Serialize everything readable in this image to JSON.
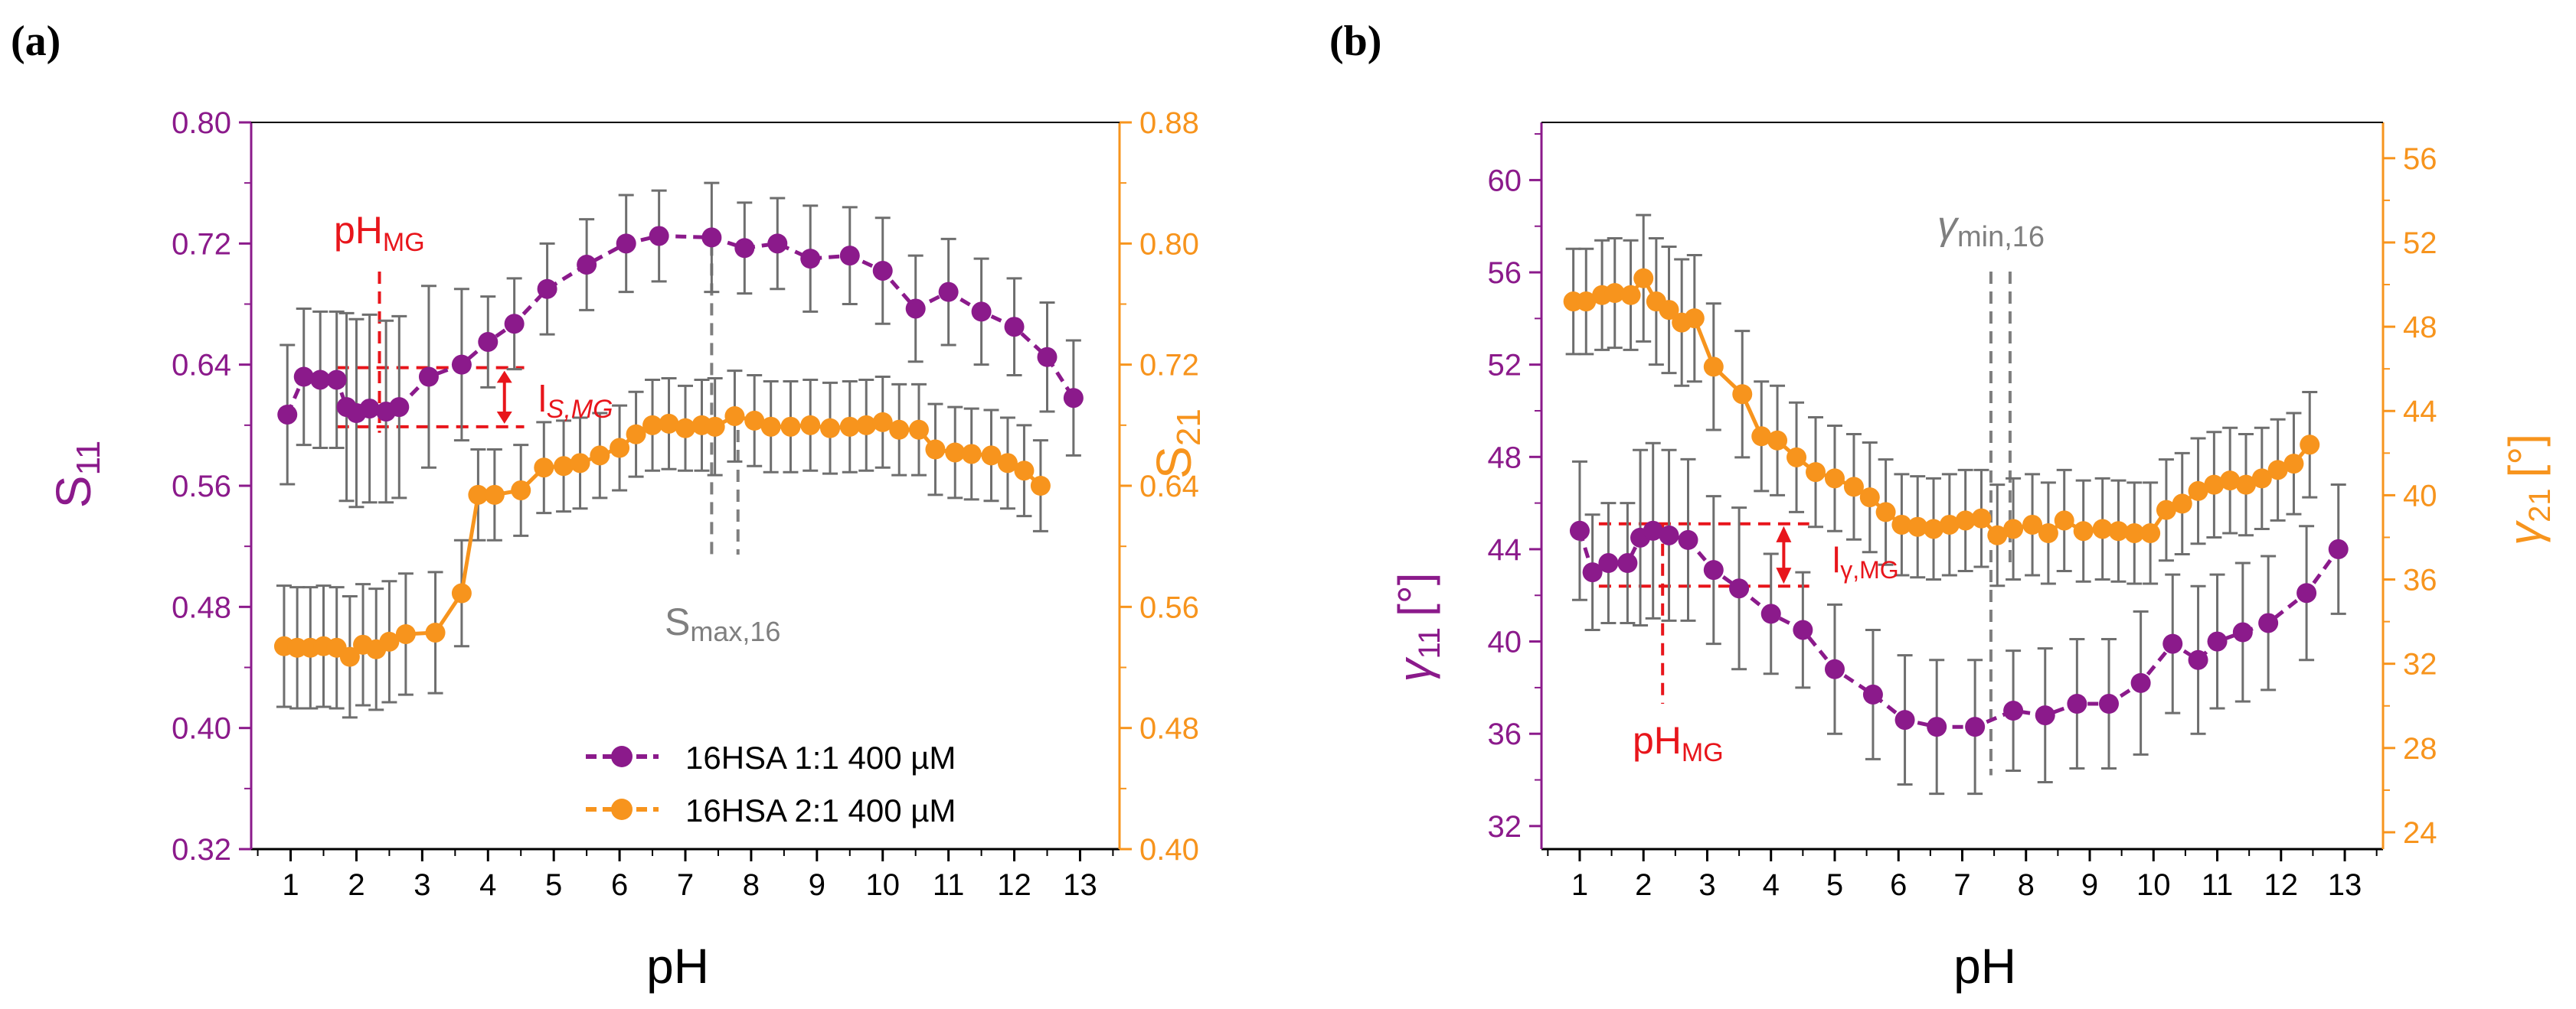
{
  "colors": {
    "purple": "#8B1A8B",
    "orange": "#F7941D",
    "red": "#E8151B",
    "gray": "#7F7F7F",
    "error": "#6E6E6E",
    "axis": "#000000"
  },
  "chart_data": [
    {
      "panel_label": "(a)",
      "type": "line",
      "xlabel": "pH",
      "xlim": [
        0.4,
        13.6
      ],
      "xticks": [
        "1",
        "2",
        "3",
        "4",
        "5",
        "6",
        "7",
        "8",
        "9",
        "10",
        "11",
        "12",
        "13"
      ],
      "y_left": {
        "label_main": "S",
        "label_sub": "11",
        "lim": [
          0.32,
          0.8
        ],
        "ticks": [
          "0.32",
          "0.40",
          "0.48",
          "0.56",
          "0.64",
          "0.72",
          "0.80"
        ]
      },
      "y_right": {
        "label_main": "S",
        "label_sub": "21",
        "lim": [
          0.4,
          0.88
        ],
        "ticks": [
          "0.40",
          "0.48",
          "0.56",
          "0.64",
          "0.72",
          "0.80",
          "0.88"
        ]
      },
      "series": [
        {
          "name": "16HSA 1:1 400 µM",
          "axis": "left",
          "color": "purple",
          "x": [
            0.95,
            1.2,
            1.45,
            1.7,
            1.85,
            2.0,
            2.2,
            2.45,
            2.65,
            3.1,
            3.6,
            4.0,
            4.4,
            4.9,
            5.5,
            6.1,
            6.6,
            7.4,
            7.9,
            8.4,
            8.9,
            9.5,
            10.0,
            10.5,
            11.0,
            11.5,
            12.0,
            12.5,
            12.9
          ],
          "y": [
            0.607,
            0.632,
            0.63,
            0.63,
            0.612,
            0.608,
            0.611,
            0.609,
            0.612,
            0.632,
            0.64,
            0.655,
            0.667,
            0.69,
            0.706,
            0.72,
            0.725,
            0.724,
            0.717,
            0.72,
            0.71,
            0.712,
            0.702,
            0.677,
            0.688,
            0.675,
            0.665,
            0.645,
            0.618
          ],
          "err": [
            0.046,
            0.045,
            0.045,
            0.045,
            0.062,
            0.062,
            0.062,
            0.06,
            0.06,
            0.06,
            0.05,
            0.03,
            0.03,
            0.03,
            0.03,
            0.032,
            0.03,
            0.036,
            0.03,
            0.03,
            0.035,
            0.032,
            0.035,
            0.035,
            0.035,
            0.035,
            0.032,
            0.036,
            0.038
          ]
        },
        {
          "name": "16HSA 2:1 400 µM",
          "axis": "right",
          "color": "orange",
          "x": [
            0.9,
            1.1,
            1.3,
            1.5,
            1.7,
            1.9,
            2.1,
            2.3,
            2.5,
            2.75,
            3.2,
            3.6,
            3.85,
            4.1,
            4.5,
            4.85,
            5.15,
            5.4,
            5.7,
            6.0,
            6.25,
            6.5,
            6.75,
            7.0,
            7.25,
            7.45,
            7.75,
            8.05,
            8.3,
            8.6,
            8.9,
            9.2,
            9.5,
            9.75,
            10.0,
            10.25,
            10.55,
            10.8,
            11.1,
            11.35,
            11.65,
            11.9,
            12.15,
            12.4
          ],
          "y": [
            0.534,
            0.533,
            0.533,
            0.534,
            0.533,
            0.527,
            0.535,
            0.532,
            0.537,
            0.542,
            0.543,
            0.569,
            0.634,
            0.634,
            0.637,
            0.652,
            0.653,
            0.655,
            0.66,
            0.665,
            0.674,
            0.68,
            0.681,
            0.678,
            0.68,
            0.679,
            0.686,
            0.683,
            0.679,
            0.679,
            0.68,
            0.678,
            0.679,
            0.68,
            0.682,
            0.677,
            0.677,
            0.664,
            0.662,
            0.661,
            0.66,
            0.655,
            0.65,
            0.64
          ],
          "err": [
            0.04,
            0.04,
            0.04,
            0.04,
            0.04,
            0.04,
            0.04,
            0.04,
            0.04,
            0.04,
            0.04,
            0.035,
            0.03,
            0.03,
            0.03,
            0.03,
            0.03,
            0.03,
            0.028,
            0.028,
            0.028,
            0.03,
            0.03,
            0.028,
            0.03,
            0.032,
            0.03,
            0.03,
            0.03,
            0.03,
            0.03,
            0.03,
            0.03,
            0.03,
            0.03,
            0.03,
            0.03,
            0.03,
            0.03,
            0.03,
            0.03,
            0.03,
            0.03,
            0.03
          ]
        }
      ],
      "annotations": {
        "ph_mg_main": "pH",
        "ph_mg_sub": "MG",
        "width_main": "l",
        "width_sub": "S,MG",
        "extreme_main": "S",
        "extreme_sub": "max,16"
      }
    },
    {
      "panel_label": "(b)",
      "type": "line",
      "xlabel": "pH",
      "xlim": [
        0.4,
        13.6
      ],
      "xticks": [
        "1",
        "2",
        "3",
        "4",
        "5",
        "6",
        "7",
        "8",
        "9",
        "10",
        "11",
        "12",
        "13"
      ],
      "y_left": {
        "label_main": "γ",
        "label_sub": "11",
        "label_unit": "[°]",
        "lim": [
          31,
          62.5
        ],
        "ticks": [
          "32",
          "36",
          "40",
          "44",
          "48",
          "52",
          "56",
          "60"
        ]
      },
      "y_right": {
        "label_main": "γ",
        "label_sub": "21",
        "label_unit": "[°]",
        "lim": [
          23.2,
          57.7
        ],
        "ticks": [
          "24",
          "28",
          "32",
          "36",
          "40",
          "44",
          "48",
          "52",
          "56"
        ]
      },
      "series": [
        {
          "name": "γ11",
          "axis": "left",
          "color": "purple",
          "x": [
            1.0,
            1.2,
            1.45,
            1.75,
            1.95,
            2.15,
            2.4,
            2.7,
            3.1,
            3.5,
            4.0,
            4.5,
            5.0,
            5.6,
            6.1,
            6.6,
            7.2,
            7.8,
            8.3,
            8.8,
            9.3,
            9.8,
            10.3,
            10.7,
            11.0,
            11.4,
            11.8,
            12.4,
            12.9
          ],
          "y": [
            44.8,
            43.0,
            43.4,
            43.4,
            44.5,
            44.8,
            44.6,
            44.4,
            43.1,
            42.3,
            41.2,
            40.5,
            38.8,
            37.7,
            36.6,
            36.3,
            36.3,
            37.0,
            36.8,
            37.3,
            37.3,
            38.2,
            39.9,
            39.2,
            40.0,
            40.4,
            40.8,
            42.1,
            44.0
          ],
          "err": [
            3.0,
            2.5,
            2.6,
            2.6,
            3.8,
            3.8,
            3.7,
            3.5,
            3.2,
            3.5,
            2.6,
            2.5,
            2.8,
            2.8,
            2.8,
            2.9,
            2.9,
            2.6,
            2.9,
            2.8,
            2.8,
            3.1,
            3.0,
            3.2,
            2.9,
            3.0,
            2.9,
            2.9,
            2.8
          ]
        },
        {
          "name": "γ21",
          "axis": "right",
          "color": "orange",
          "x": [
            0.9,
            1.1,
            1.35,
            1.55,
            1.8,
            2.0,
            2.2,
            2.4,
            2.6,
            2.8,
            3.1,
            3.55,
            3.85,
            4.1,
            4.4,
            4.7,
            5.0,
            5.3,
            5.55,
            5.8,
            6.05,
            6.3,
            6.55,
            6.8,
            7.05,
            7.3,
            7.55,
            7.8,
            8.1,
            8.35,
            8.6,
            8.9,
            9.2,
            9.45,
            9.7,
            9.95,
            10.2,
            10.45,
            10.7,
            10.95,
            11.2,
            11.45,
            11.7,
            11.95,
            12.2,
            12.45
          ],
          "y": [
            49.2,
            49.2,
            49.5,
            49.6,
            49.5,
            50.3,
            49.2,
            48.8,
            48.2,
            48.4,
            46.1,
            44.8,
            42.8,
            42.6,
            41.8,
            41.1,
            40.8,
            40.4,
            39.9,
            39.2,
            38.6,
            38.5,
            38.4,
            38.6,
            38.8,
            38.9,
            38.1,
            38.4,
            38.6,
            38.2,
            38.8,
            38.3,
            38.4,
            38.3,
            38.2,
            38.2,
            39.3,
            39.6,
            40.2,
            40.5,
            40.7,
            40.5,
            40.8,
            41.2,
            41.5,
            42.4
          ],
          "err": [
            2.5,
            2.5,
            2.6,
            2.6,
            2.6,
            3.0,
            3.0,
            3.0,
            3.0,
            3.0,
            3.0,
            3.0,
            2.6,
            2.6,
            2.6,
            2.6,
            2.5,
            2.5,
            2.6,
            2.5,
            2.4,
            2.4,
            2.4,
            2.4,
            2.4,
            2.3,
            2.4,
            2.4,
            2.4,
            2.4,
            2.4,
            2.4,
            2.4,
            2.4,
            2.4,
            2.4,
            2.4,
            2.4,
            2.5,
            2.5,
            2.5,
            2.4,
            2.4,
            2.4,
            2.4,
            2.5
          ]
        }
      ],
      "annotations": {
        "ph_mg_main": "pH",
        "ph_mg_sub": "MG",
        "width_main": "l",
        "width_sub": "γ,MG",
        "extreme_main": "γ",
        "extreme_sub": "min,16"
      }
    }
  ]
}
